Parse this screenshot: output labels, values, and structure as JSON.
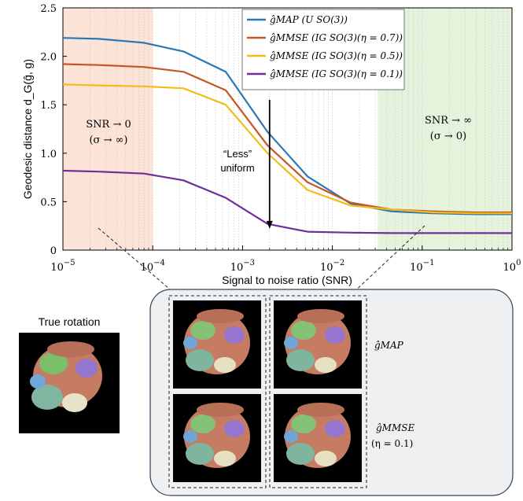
{
  "chart_data": {
    "type": "line",
    "xlabel": "Signal to noise ratio (SNR)",
    "ylabel": "Geodesic distance d_G(ĝ, g)",
    "xscale": "log",
    "xlim": [
      1e-05,
      1
    ],
    "ylim": [
      0,
      2.5
    ],
    "x_tick_labels": [
      "10^-5",
      "10^-4",
      "10^-3",
      "10^-2",
      "10^-1",
      "10^0"
    ],
    "y_ticks": [
      "0",
      "0.5",
      "1.0",
      "1.5",
      "2.0",
      "2.5"
    ],
    "grid": "vertical minor gridlines",
    "legend_position": "top-right",
    "x": [
      1e-05,
      2.5e-05,
      8e-05,
      0.00022,
      0.00065,
      0.0019,
      0.0053,
      0.016,
      0.045,
      0.13,
      0.37,
      1
    ],
    "series": [
      {
        "name": "ĝMAP (U SO(3))",
        "color": "#2a78b5",
        "values": [
          2.19,
          2.18,
          2.14,
          2.05,
          1.84,
          1.22,
          0.76,
          0.48,
          0.4,
          0.38,
          0.37,
          0.37
        ]
      },
      {
        "name": "ĝMMSE (IG SO(3)(η = 0.7))",
        "color": "#c65526",
        "values": [
          1.92,
          1.91,
          1.89,
          1.84,
          1.65,
          1.08,
          0.7,
          0.49,
          0.42,
          0.4,
          0.39,
          0.39
        ]
      },
      {
        "name": "ĝMMSE (IG SO(3)(η = 0.5))",
        "color": "#f3bc16",
        "values": [
          1.71,
          1.7,
          1.69,
          1.67,
          1.5,
          1.0,
          0.62,
          0.46,
          0.42,
          0.39,
          0.38,
          0.38
        ]
      },
      {
        "name": "ĝMMSE (IG SO(3)(η = 0.1))",
        "color": "#6f2e9a",
        "values": [
          0.82,
          0.81,
          0.79,
          0.72,
          0.54,
          0.27,
          0.19,
          0.18,
          0.175,
          0.175,
          0.175,
          0.175
        ]
      }
    ],
    "regions": [
      {
        "label_line1": "SNR → 0",
        "label_line2": "(σ → ∞)",
        "x_from": 1e-05,
        "x_to": 0.0001,
        "color": "#fbe3d8"
      },
      {
        "label_line1": "SNR → ∞",
        "label_line2": "(σ → 0)",
        "x_from": 0.032,
        "x_to": 1,
        "color": "#e6f3dc"
      }
    ],
    "arrow_annotation": {
      "line1": "“Less”",
      "line2": "uniform",
      "x": 0.002,
      "y_from": 1.55,
      "y_to": 0.22
    }
  },
  "inset": {
    "true_rotation_label": "True rotation",
    "row1_label": "ĝMAP",
    "row2_label_line1": "ĝMMSE",
    "row2_label_line2": "(η = 0.1)"
  }
}
